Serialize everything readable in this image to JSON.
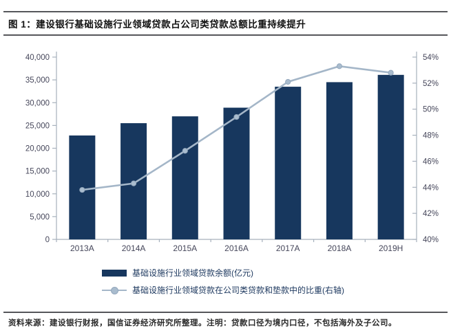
{
  "title": "图 1：建设银行基础设施行业领域贷款占公司类贷款总额比重持续提升",
  "footer": {
    "text": "资料来源：建设银行财报，国信证券经济研究所整理。注明：贷款口径为境内口径，不包括海外及子公司。"
  },
  "legend": {
    "bar_label": "基础设施行业领域贷款余额(亿元)",
    "line_label": "基础设施行业领域贷款在公司类贷款和垫款中的比重(右轴)"
  },
  "colors": {
    "bar": "#17375e",
    "line": "#a4b6c8",
    "marker_fill": "#a9bcce",
    "marker_stroke": "#93a7bc",
    "axis_line": "#a6b0bc",
    "tick_label": "#45465a",
    "rule": "#55565a",
    "legend_text": "#1f3a60"
  },
  "chart_data": {
    "type": "bar+line combo",
    "categories": [
      "2013A",
      "2014A",
      "2015A",
      "2016A",
      "2017A",
      "2018A",
      "2019H"
    ],
    "series": [
      {
        "name": "基础设施行业领域贷款余额(亿元)",
        "type": "bar",
        "axis": "left",
        "values": [
          22800,
          25500,
          27000,
          28900,
          33500,
          34500,
          36100
        ]
      },
      {
        "name": "基础设施行业领域贷款在公司类贷款和垫款中的比重(右轴)",
        "type": "line",
        "axis": "right",
        "values": [
          43.8,
          44.3,
          46.8,
          49.4,
          52.1,
          53.3,
          52.8
        ]
      }
    ],
    "left_axis": {
      "min": 0,
      "max": 40000,
      "step": 5000,
      "tick_labels": [
        "0",
        "5,000",
        "10,000",
        "15,000",
        "20,000",
        "25,000",
        "30,000",
        "35,000",
        "40,000"
      ]
    },
    "right_axis": {
      "min": 40,
      "max": 54,
      "step": 2,
      "tick_labels": [
        "40%",
        "42%",
        "44%",
        "46%",
        "48%",
        "50%",
        "52%",
        "54%"
      ]
    },
    "grid": false,
    "legend_position": "bottom-left",
    "title": "图 1：建设银行基础设施行业领域贷款占公司类贷款总额比重持续提升"
  }
}
